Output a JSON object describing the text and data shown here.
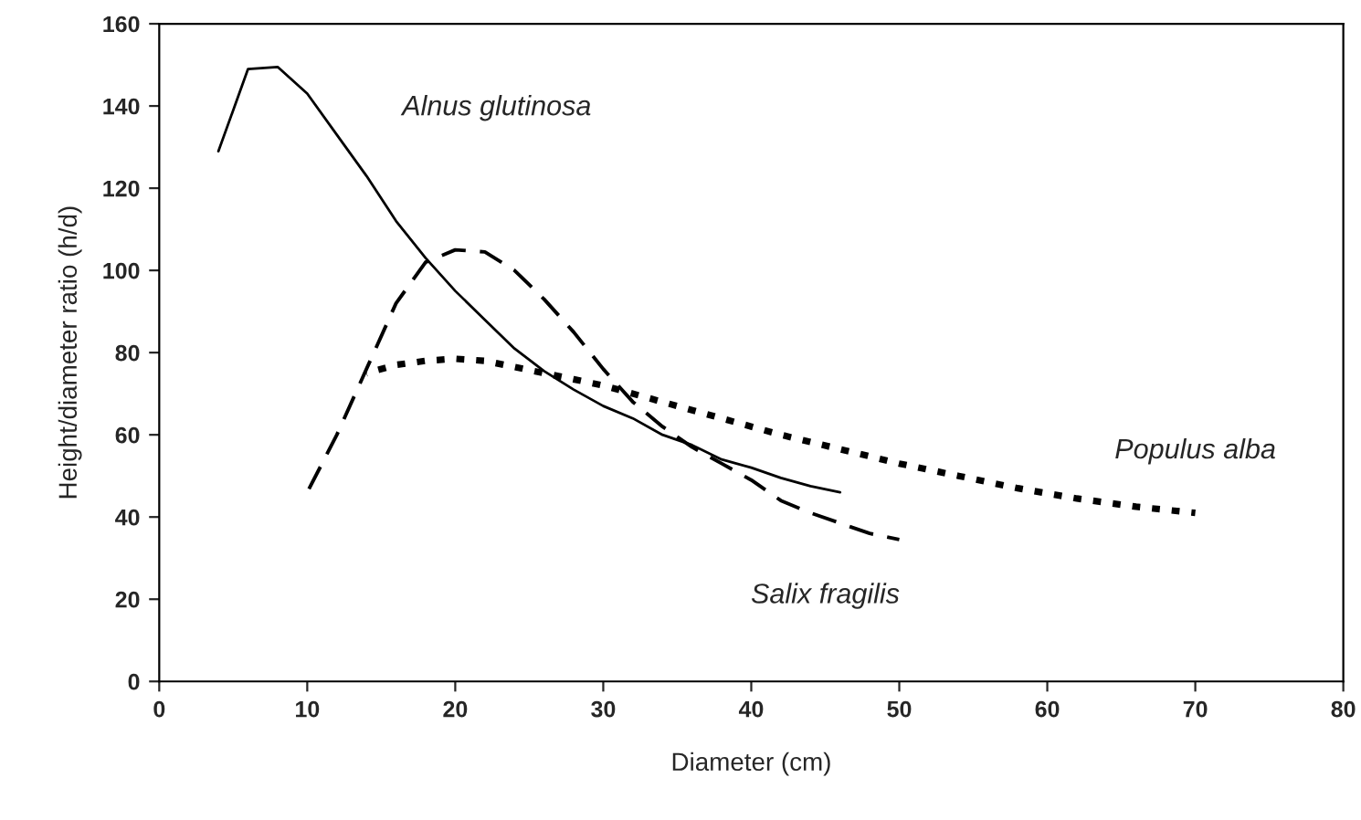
{
  "chart_data": {
    "type": "line",
    "xlabel": "Diameter (cm)",
    "ylabel": "Height/diameter ratio (h/d)",
    "xlim": [
      0,
      80
    ],
    "xticks": [
      0,
      10,
      20,
      30,
      40,
      50,
      60,
      70,
      80
    ],
    "ylim": [
      0,
      160
    ],
    "yticks": [
      0,
      20,
      40,
      60,
      80,
      100,
      120,
      140,
      160
    ],
    "grid": false,
    "legend": false,
    "marker": "none",
    "series": [
      {
        "name": "Alnus glutinosa",
        "color": "#000000",
        "line_style": "solid",
        "x": [
          4,
          6,
          8,
          10,
          12,
          14,
          16,
          18,
          20,
          22,
          24,
          26,
          28,
          30,
          32,
          34,
          36,
          38,
          40,
          42,
          44,
          46
        ],
        "values": [
          129,
          149,
          149.5,
          143,
          133,
          123,
          112,
          103,
          95,
          88,
          81,
          75.5,
          71,
          67,
          64,
          60,
          57.5,
          54,
          52,
          49.5,
          47.5,
          46
        ]
      },
      {
        "name": "Salix fragilis",
        "color": "#000000",
        "line_style": "dashed",
        "x": [
          10,
          12,
          14,
          16,
          18,
          20,
          22,
          24,
          26,
          28,
          30,
          32,
          34,
          36,
          38,
          40,
          42,
          44,
          46,
          48,
          50
        ],
        "values": [
          46,
          60,
          76,
          92,
          102,
          105,
          104.5,
          100,
          93,
          85,
          76,
          68,
          62,
          57,
          53,
          49,
          44,
          41,
          38.5,
          36,
          34.5
        ]
      },
      {
        "name": "Populus alba",
        "color": "#000000",
        "line_style": "dotted",
        "x": [
          14,
          16,
          18,
          20,
          22,
          24,
          26,
          28,
          30,
          34,
          38,
          42,
          46,
          50,
          54,
          58,
          62,
          66,
          70
        ],
        "values": [
          75,
          77,
          78,
          78.5,
          78,
          76.5,
          75,
          73.5,
          72,
          68,
          64,
          60,
          56.5,
          53,
          50,
          47,
          44.5,
          42.5,
          41
        ]
      }
    ]
  }
}
